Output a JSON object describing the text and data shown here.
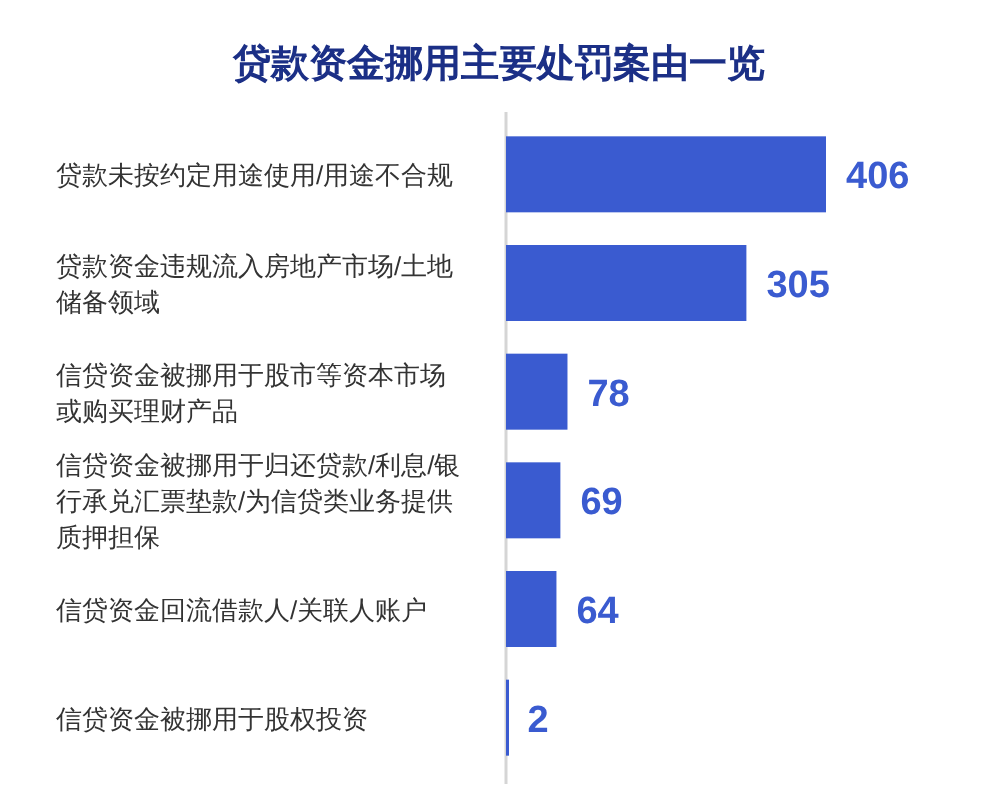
{
  "chart_data": {
    "type": "bar",
    "orientation": "horizontal",
    "title": "贷款资金挪用主要处罚案由一览",
    "categories": [
      "贷款未按约定用途使用/用途不合规",
      "贷款资金违规流入房地产市场/土地储备领域",
      "信贷资金被挪用于股市等资本市场或购买理财产品",
      "信贷资金被挪用于归还贷款/利息/银行承兑汇票垫款/为信贷类业务提供质押担保",
      "信贷资金回流借款人/关联人账户",
      "信贷资金被挪用于股权投资"
    ],
    "values": [
      406,
      305,
      78,
      69,
      64,
      2
    ],
    "color": "#3a5bd0",
    "data_labels": true
  }
}
